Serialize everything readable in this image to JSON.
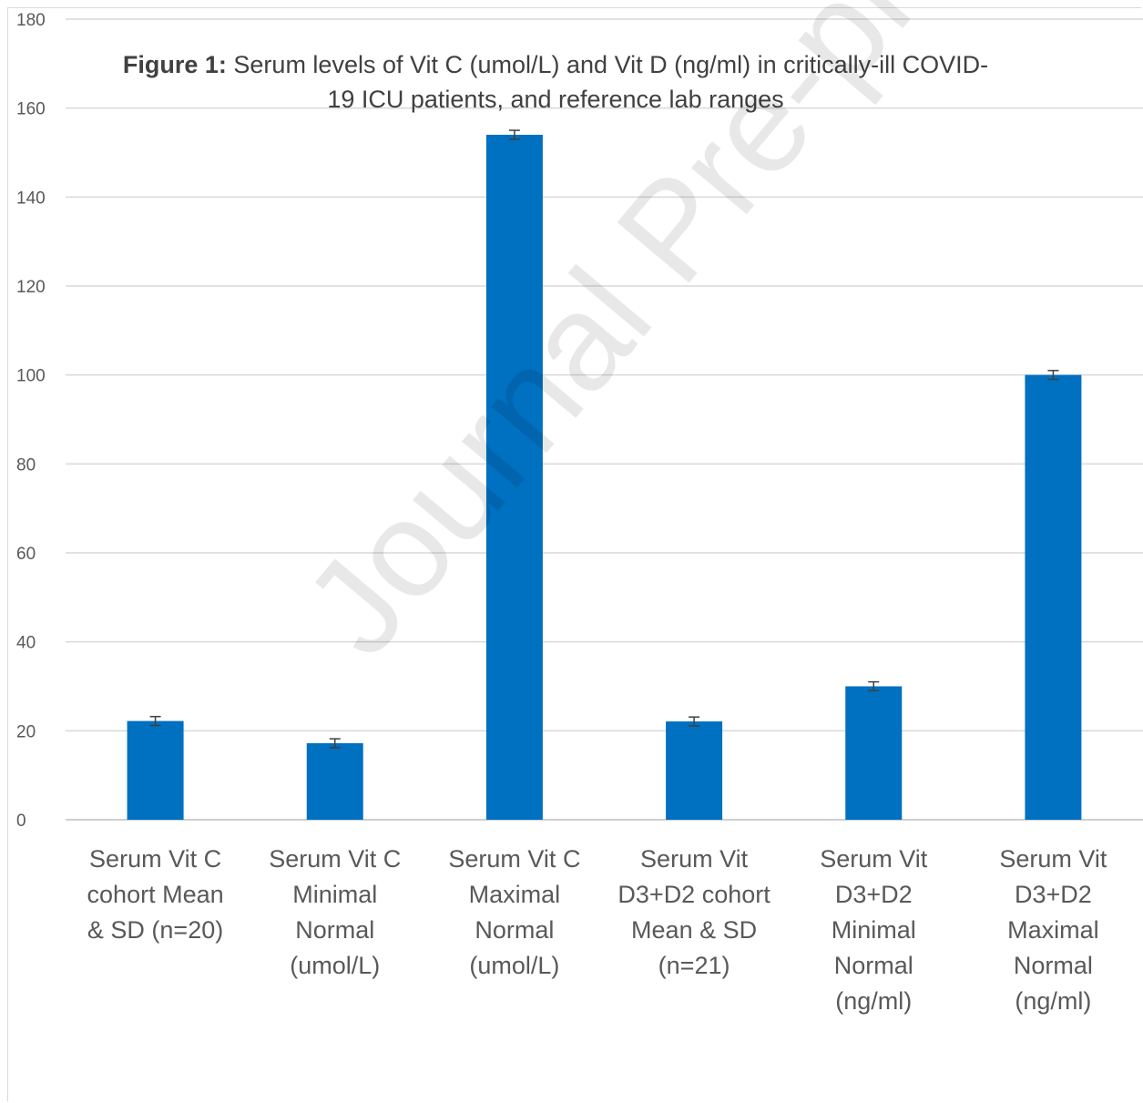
{
  "chart_data": {
    "type": "bar",
    "title_bold": "Figure 1:",
    "title_rest": "Serum levels of Vit C (umol/L) and Vit D (ng/ml) in critically-ill COVID-19 ICU patients, and reference lab ranges",
    "categories": [
      [
        "Serum Vit C",
        "cohort Mean",
        "& SD (n=20)"
      ],
      [
        "Serum Vit C",
        "Minimal",
        "Normal",
        "(umol/L)"
      ],
      [
        "Serum Vit C",
        "Maximal",
        "Normal",
        "(umol/L)"
      ],
      [
        "Serum Vit",
        "D3+D2 cohort",
        "Mean & SD",
        "(n=21)"
      ],
      [
        "Serum Vit",
        "D3+D2",
        "Minimal",
        "Normal",
        "(ng/ml)"
      ],
      [
        "Serum Vit",
        "D3+D2",
        "Maximal",
        "Normal",
        "(ng/ml)"
      ]
    ],
    "values": [
      22.2,
      17.2,
      154,
      22.1,
      30,
      100
    ],
    "error": [
      1,
      1,
      1,
      1,
      1,
      1
    ],
    "ylim": [
      0,
      180
    ],
    "yticks": [
      0,
      20,
      40,
      60,
      80,
      100,
      120,
      140,
      160,
      180
    ],
    "grid": true,
    "bar_color": "#0070C0",
    "watermark": "Journal Pre-proof"
  }
}
